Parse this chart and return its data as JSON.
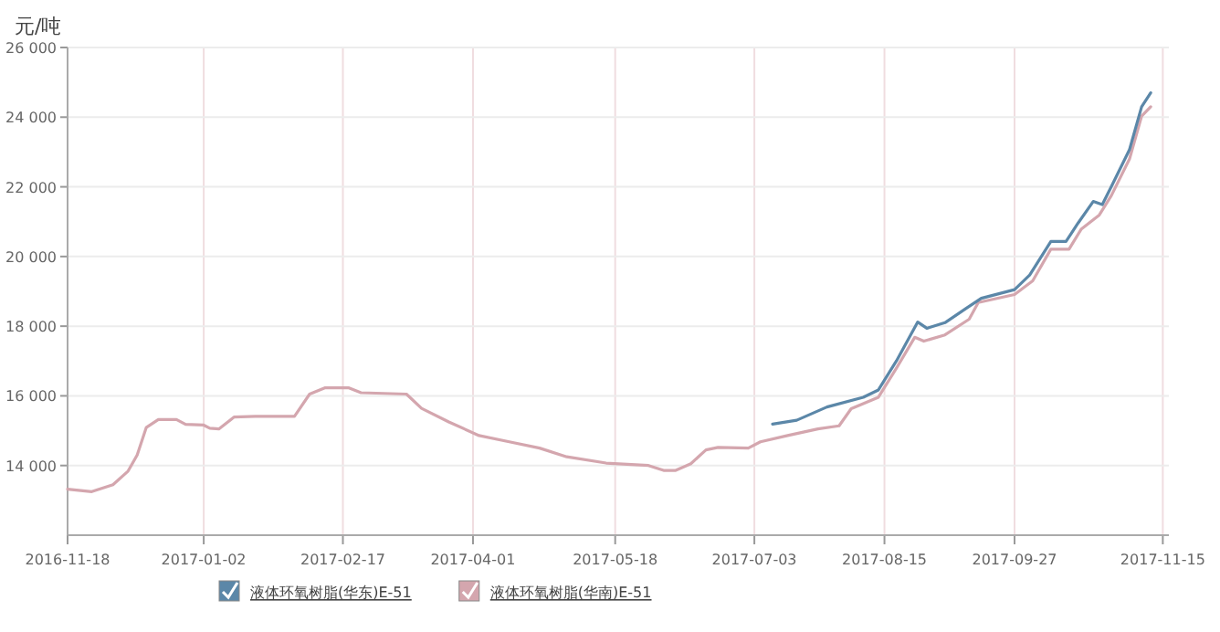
{
  "chart_data": {
    "type": "line",
    "ylabel": "元/吨",
    "xlim": [
      "2016-11-18",
      "2017-11-17"
    ],
    "xticks": [
      {
        "value": "2016-11-18",
        "label": "2016-11-18"
      },
      {
        "value": "2017-01-02",
        "label": "2017-01-02"
      },
      {
        "value": "2017-02-17",
        "label": "2017-02-17"
      },
      {
        "value": "2017-04-01",
        "label": "2017-04-01"
      },
      {
        "value": "2017-05-18",
        "label": "2017-05-18"
      },
      {
        "value": "2017-07-03",
        "label": "2017-07-03"
      },
      {
        "value": "2017-08-15",
        "label": "2017-08-15"
      },
      {
        "value": "2017-09-27",
        "label": "2017-09-27"
      },
      {
        "value": "2017-11-15",
        "label": "2017-11-15"
      }
    ],
    "ylim": [
      12000,
      26000
    ],
    "yticks": [
      {
        "value": 14000,
        "label": "14 000"
      },
      {
        "value": 16000,
        "label": "16 000"
      },
      {
        "value": 18000,
        "label": "18 000"
      },
      {
        "value": 20000,
        "label": "20 000"
      },
      {
        "value": 22000,
        "label": "22 000"
      },
      {
        "value": 24000,
        "label": "24 000"
      },
      {
        "value": 26000,
        "label": "26 000"
      }
    ],
    "grid": true,
    "legend": "bottom left",
    "marker": "none",
    "line_style": "solid",
    "series": [
      {
        "name": "液体环氧树脂(华东)E-51",
        "color": "#5b87a8",
        "x": [
          "2017-07-09",
          "2017-07-17",
          "2017-07-27",
          "2017-08-08",
          "2017-08-13",
          "2017-08-19",
          "2017-08-26",
          "2017-08-29",
          "2017-09-04",
          "2017-09-11",
          "2017-09-16",
          "2017-09-27",
          "2017-10-02",
          "2017-10-09",
          "2017-10-14",
          "2017-10-18",
          "2017-10-23",
          "2017-10-26",
          "2017-10-29",
          "2017-11-04",
          "2017-11-08",
          "2017-11-11"
        ],
        "values": [
          15190,
          15300,
          15680,
          15960,
          16170,
          17010,
          18120,
          17940,
          18100,
          18510,
          18800,
          19050,
          19470,
          20430,
          20430,
          20960,
          21580,
          21490,
          22010,
          23070,
          24300,
          24700
        ]
      },
      {
        "name": "液体环氧树脂(华南)E-51",
        "color": "#d4a6ae",
        "x": [
          "2016-11-18",
          "2016-11-26",
          "2016-12-03",
          "2016-12-08",
          "2016-12-11",
          "2016-12-14",
          "2016-12-18",
          "2016-12-24",
          "2016-12-27",
          "2017-01-02",
          "2017-01-04",
          "2017-01-07",
          "2017-01-12",
          "2017-01-19",
          "2017-02-01",
          "2017-02-06",
          "2017-02-11",
          "2017-02-19",
          "2017-02-23",
          "2017-03-10",
          "2017-03-15",
          "2017-03-24",
          "2017-04-03",
          "2017-04-13",
          "2017-04-23",
          "2017-05-02",
          "2017-05-15",
          "2017-05-29",
          "2017-06-03",
          "2017-06-07",
          "2017-06-12",
          "2017-06-17",
          "2017-06-21",
          "2017-07-01",
          "2017-07-05",
          "2017-07-14",
          "2017-07-24",
          "2017-07-31",
          "2017-08-04",
          "2017-08-13",
          "2017-08-19",
          "2017-08-25",
          "2017-08-28",
          "2017-09-04",
          "2017-09-12",
          "2017-09-15",
          "2017-09-27",
          "2017-10-03",
          "2017-10-09",
          "2017-10-15",
          "2017-10-19",
          "2017-10-25",
          "2017-10-29",
          "2017-11-04",
          "2017-11-08",
          "2017-11-11"
        ],
        "values": [
          13320,
          13250,
          13450,
          13840,
          14300,
          15090,
          15320,
          15320,
          15180,
          15160,
          15070,
          15050,
          15390,
          15410,
          15410,
          16050,
          16230,
          16230,
          16090,
          16050,
          15640,
          15250,
          14860,
          14680,
          14500,
          14250,
          14070,
          14000,
          13860,
          13860,
          14050,
          14450,
          14520,
          14500,
          14680,
          14860,
          15050,
          15140,
          15630,
          15960,
          16800,
          17680,
          17570,
          17750,
          18200,
          18680,
          18910,
          19300,
          20210,
          20210,
          20780,
          21190,
          21750,
          22800,
          24030,
          24300
        ]
      }
    ]
  }
}
